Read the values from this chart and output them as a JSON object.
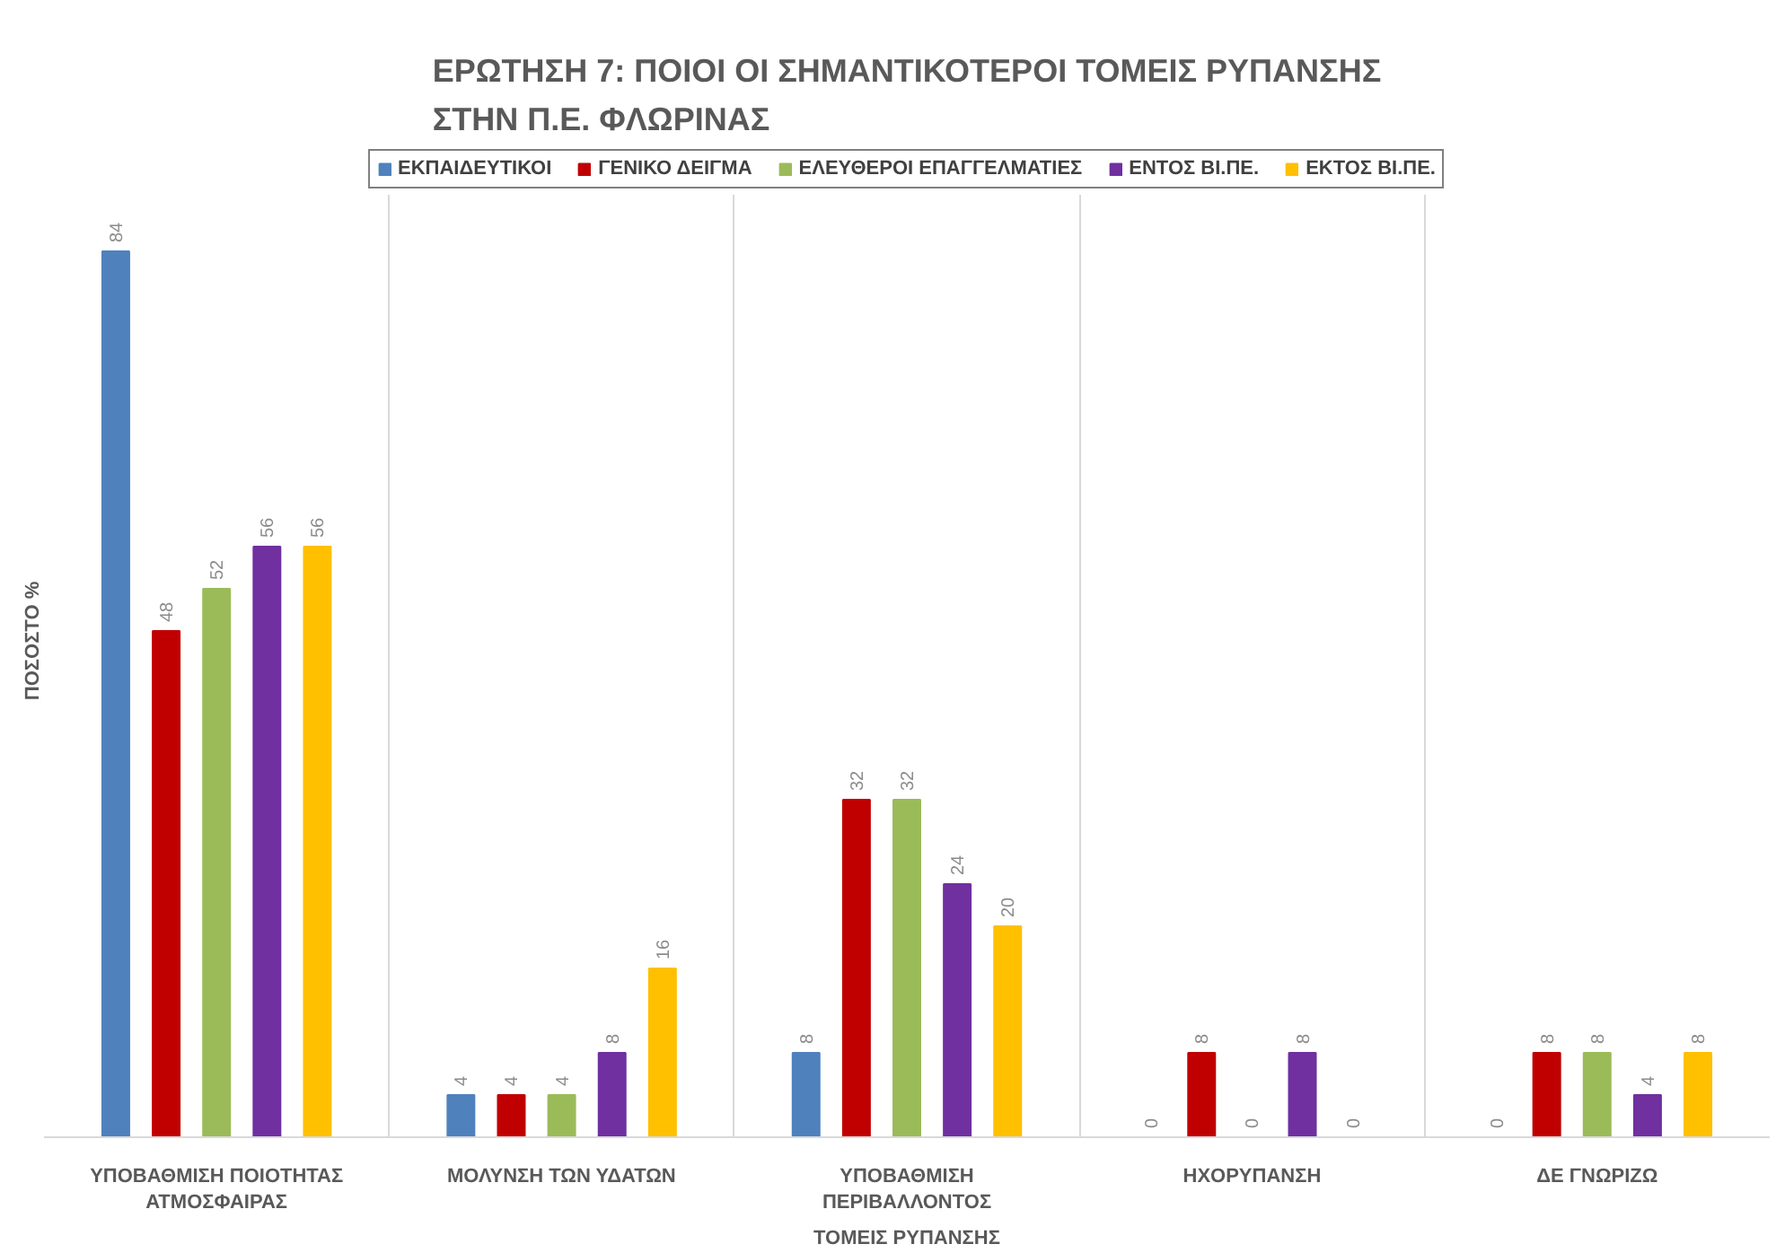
{
  "chart_data": {
    "type": "bar",
    "title": "ΕΡΩΤΗΣΗ 7: ΠΟΙΟΙ ΟΙ ΣΗΜΑΝΤΙΚΟΤΕΡΟΙ ΤΟΜΕΙΣ ΡΥΠΑΝΣΗΣ ΣΤΗΝ Π.Ε. ΦΛΩΡΙΝΑΣ",
    "xlabel": "ΤΟΜΕΙΣ ΡΥΠΑΝΣΗΣ",
    "ylabel": "ΠΟΣΟΣΤΟ %",
    "categories": [
      "ΥΠΟΒΑΘΜΙΣΗ ΠΟΙΟΤΗΤΑΣ ΑΤΜΟΣΦΑΙΡΑΣ",
      "ΜΟΛΥΝΣΗ ΤΩΝ ΥΔΑΤΩΝ",
      "ΥΠΟΒΑΘΜΙΣΗ ΠΕΡΙΒΑΛΛΟΝΤΟΣ",
      "ΗΧΟΡΥΠΑΝΣΗ",
      "ΔΕ ΓΝΩΡΙΖΩ"
    ],
    "series": [
      {
        "name": "ΕΚΠΑΙΔΕΥΤΙΚΟΙ",
        "color": "#4f81bd",
        "values": [
          84,
          4,
          8,
          0,
          0
        ]
      },
      {
        "name": "ΓΕΝΙΚΟ ΔΕΙΓΜΑ",
        "color": "#c00000",
        "values": [
          48,
          4,
          32,
          8,
          8
        ]
      },
      {
        "name": "ΕΛΕΥΘΕΡΟΙ ΕΠΑΓΓΕΛΜΑΤΙΕΣ",
        "color": "#9bbb59",
        "values": [
          52,
          4,
          32,
          0,
          8
        ]
      },
      {
        "name": "ΕΝΤΟΣ ΒΙ.ΠΕ.",
        "color": "#7030a0",
        "values": [
          56,
          8,
          24,
          8,
          4
        ]
      },
      {
        "name": "ΕΚΤΟΣ ΒΙ.ΠΕ.",
        "color": "#ffc000",
        "values": [
          56,
          16,
          20,
          0,
          8
        ]
      }
    ],
    "data_labels": true,
    "legend": "top",
    "grid": "x",
    "tick_labels": "x"
  }
}
